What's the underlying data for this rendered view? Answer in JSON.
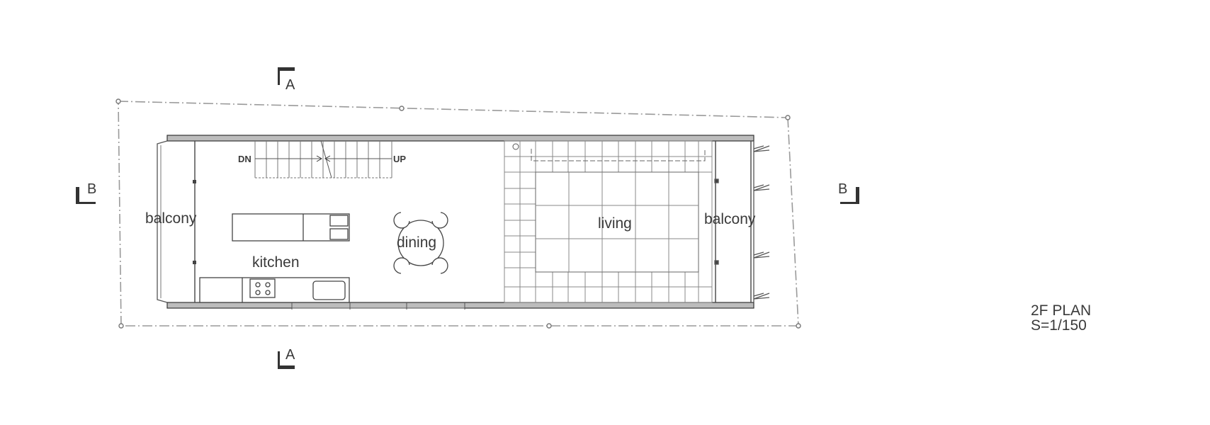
{
  "rooms": {
    "balcony_west": "balcony",
    "kitchen": "kitchen",
    "dining": "dining",
    "living": "living",
    "balcony_east": "balcony"
  },
  "stair": {
    "down": "DN",
    "up": "UP"
  },
  "section_markers": {
    "a_top": "A",
    "a_bottom": "A",
    "b_left": "B",
    "b_right": "B"
  },
  "title": {
    "name": "2F PLAN",
    "scale": "S=1/150"
  }
}
